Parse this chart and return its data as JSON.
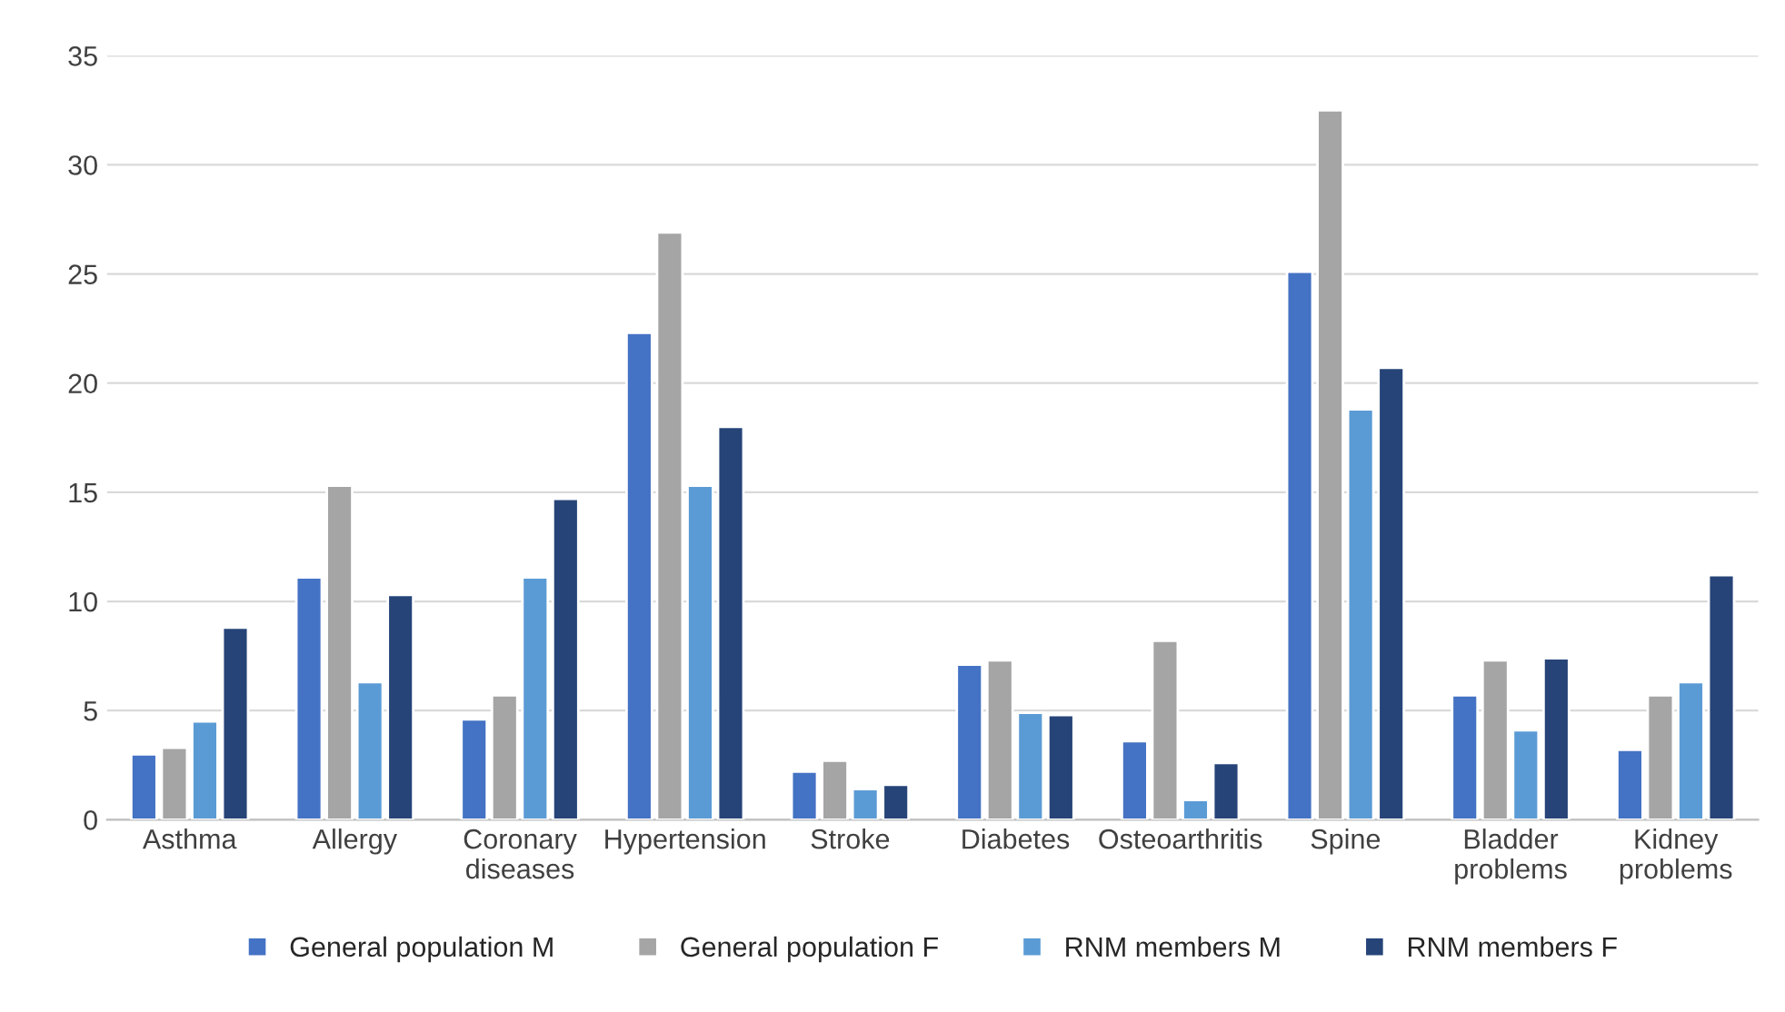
{
  "chart_data": {
    "type": "bar",
    "categories": [
      "Asthma",
      "Allergy",
      "Coronary\ndiseases",
      "Hypertension",
      "Stroke",
      "Diabetes",
      "Osteoarthritis",
      "Spine",
      "Bladder\nproblems",
      "Kidney\nproblems"
    ],
    "series": [
      {
        "name": "General population M",
        "color": "#4472c4",
        "values": [
          3.0,
          11.1,
          4.6,
          22.3,
          2.2,
          7.1,
          3.6,
          25.1,
          5.7,
          3.2
        ]
      },
      {
        "name": "General population F",
        "color": "#a5a5a5",
        "values": [
          3.3,
          15.3,
          5.7,
          26.9,
          2.7,
          7.3,
          8.2,
          32.5,
          7.3,
          5.7
        ]
      },
      {
        "name": "RNM members M",
        "color": "#5b9bd5",
        "values": [
          4.5,
          6.3,
          11.1,
          15.3,
          1.4,
          4.9,
          0.9,
          18.8,
          4.1,
          6.3
        ]
      },
      {
        "name": "RNM members F",
        "color": "#264478",
        "values": [
          8.8,
          10.3,
          14.7,
          18.0,
          1.6,
          4.8,
          2.6,
          20.7,
          7.4,
          11.2
        ]
      }
    ],
    "ylim": [
      0,
      35
    ],
    "yticks": [
      0,
      5,
      10,
      15,
      20,
      25,
      30,
      35
    ],
    "grid": "y",
    "legend": "bottom"
  }
}
